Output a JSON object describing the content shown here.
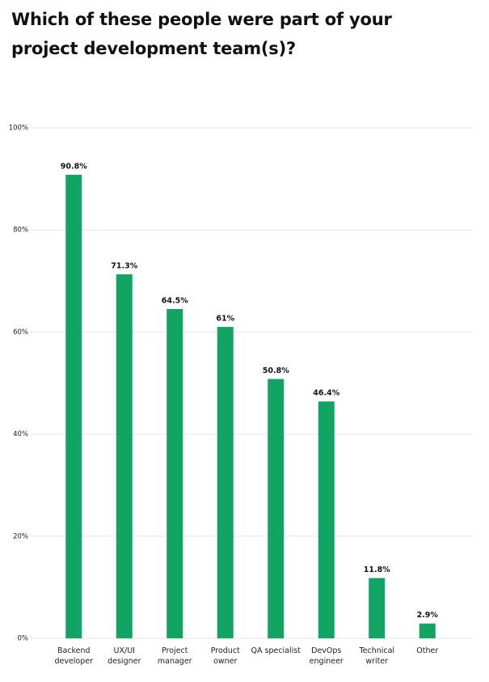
{
  "chart_data": {
    "type": "bar",
    "title": "Which of these people were part of your project development team(s)?",
    "categories": [
      "Backend developer",
      "UX/UI designer",
      "Project manager",
      "Product owner",
      "QA specialist",
      "DevOps engineer",
      "Technical writer",
      "Other"
    ],
    "values": [
      90.8,
      71.3,
      64.5,
      61,
      50.8,
      46.4,
      11.8,
      2.9
    ],
    "value_labels": [
      "90.8%",
      "71.3%",
      "64.5%",
      "61%",
      "50.8%",
      "46.4%",
      "11.8%",
      "2.9%"
    ],
    "color": "#12a463",
    "ylim": [
      0,
      100
    ],
    "yticks": [
      {
        "value": 0,
        "label": "0%"
      },
      {
        "value": 20,
        "label": "20%"
      },
      {
        "value": 40,
        "label": "40%"
      },
      {
        "value": 60,
        "label": "60%"
      },
      {
        "value": 80,
        "label": "80%"
      },
      {
        "value": 100,
        "label": "100%"
      }
    ],
    "grid": true
  }
}
